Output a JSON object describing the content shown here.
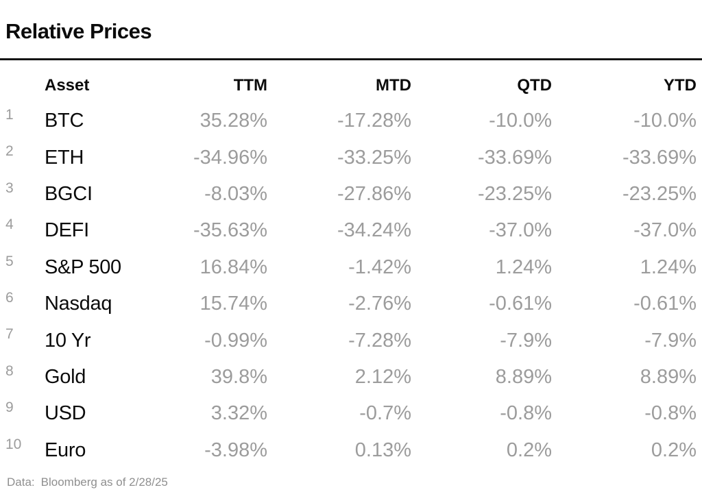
{
  "title": "Relative Prices",
  "table": {
    "columns": {
      "asset": "Asset",
      "ttm": "TTM",
      "mtd": "MTD",
      "qtd": "QTD",
      "ytd": "YTD"
    },
    "rows": [
      {
        "num": "1",
        "asset": "BTC",
        "ttm": "35.28%",
        "mtd": "-17.28%",
        "qtd": "-10.0%",
        "ytd": "-10.0%"
      },
      {
        "num": "2",
        "asset": "ETH",
        "ttm": "-34.96%",
        "mtd": "-33.25%",
        "qtd": "-33.69%",
        "ytd": "-33.69%"
      },
      {
        "num": "3",
        "asset": "BGCI",
        "ttm": "-8.03%",
        "mtd": "-27.86%",
        "qtd": "-23.25%",
        "ytd": "-23.25%"
      },
      {
        "num": "4",
        "asset": "DEFI",
        "ttm": "-35.63%",
        "mtd": "-34.24%",
        "qtd": "-37.0%",
        "ytd": "-37.0%"
      },
      {
        "num": "5",
        "asset": "S&P 500",
        "ttm": "16.84%",
        "mtd": "-1.42%",
        "qtd": "1.24%",
        "ytd": "1.24%"
      },
      {
        "num": "6",
        "asset": "Nasdaq",
        "ttm": "15.74%",
        "mtd": "-2.76%",
        "qtd": "-0.61%",
        "ytd": "-0.61%"
      },
      {
        "num": "7",
        "asset": "10 Yr",
        "ttm": "-0.99%",
        "mtd": "-7.28%",
        "qtd": "-7.9%",
        "ytd": "-7.9%"
      },
      {
        "num": "8",
        "asset": "Gold",
        "ttm": "39.8%",
        "mtd": "2.12%",
        "qtd": "8.89%",
        "ytd": "8.89%"
      },
      {
        "num": "9",
        "asset": "USD",
        "ttm": "3.32%",
        "mtd": "-0.7%",
        "qtd": "-0.8%",
        "ytd": "-0.8%"
      },
      {
        "num": "10",
        "asset": "Euro",
        "ttm": "-3.98%",
        "mtd": "0.13%",
        "qtd": "0.2%",
        "ytd": "0.2%"
      }
    ]
  },
  "footer": {
    "source_label": "Data:",
    "source_text": "Bloomberg as of 2/28/25"
  },
  "colors": {
    "text": "#0b0b0b",
    "muted_value": "#9c9c9c",
    "footer_text": "#8f8f8f",
    "divider": "#141414",
    "background": "#ffffff"
  },
  "chart_data": {
    "type": "table",
    "title": "Relative Prices",
    "columns": [
      "Asset",
      "TTM",
      "MTD",
      "QTD",
      "YTD"
    ],
    "units": "percent",
    "rows": [
      [
        "BTC",
        35.28,
        -17.28,
        -10.0,
        -10.0
      ],
      [
        "ETH",
        -34.96,
        -33.25,
        -33.69,
        -33.69
      ],
      [
        "BGCI",
        -8.03,
        -27.86,
        -23.25,
        -23.25
      ],
      [
        "DEFI",
        -35.63,
        -34.24,
        -37.0,
        -37.0
      ],
      [
        "S&P 500",
        16.84,
        -1.42,
        1.24,
        1.24
      ],
      [
        "Nasdaq",
        15.74,
        -2.76,
        -0.61,
        -0.61
      ],
      [
        "10 Yr",
        -0.99,
        -7.28,
        -7.9,
        -7.9
      ],
      [
        "Gold",
        39.8,
        2.12,
        8.89,
        8.89
      ],
      [
        "USD",
        3.32,
        -0.7,
        -0.8,
        -0.8
      ],
      [
        "Euro",
        -3.98,
        0.13,
        0.2,
        0.2
      ]
    ],
    "source_note": "Data: Bloomberg as of 2/28/25"
  }
}
